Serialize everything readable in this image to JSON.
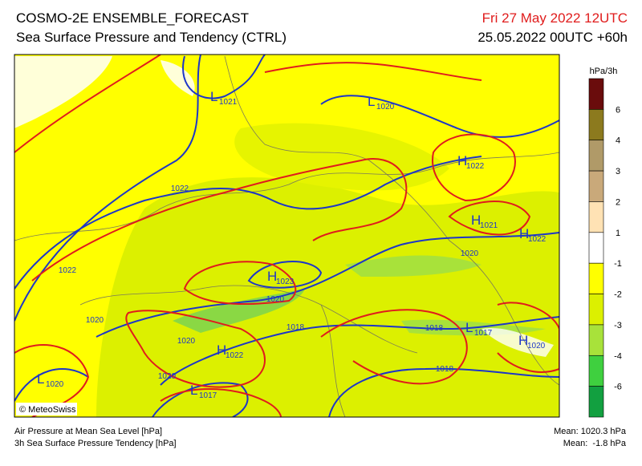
{
  "header": {
    "title": "COSMO-2E ENSEMBLE_FORECAST",
    "subtitle": "Sea Surface Pressure and Tendency (CTRL)",
    "valid_time": "Fri 27 May 2022 12UTC",
    "run_time": "25.05.2022 00UTC +60h"
  },
  "map": {
    "credit": "© MeteoSwiss",
    "labels": [
      {
        "letter": "L",
        "value": "1021"
      },
      {
        "letter": "L",
        "value": "1020"
      },
      {
        "letter": "H",
        "value": "1022"
      },
      {
        "letter": "H",
        "value": "1021"
      },
      {
        "letter": "H",
        "value": "1022"
      },
      {
        "value": "1022"
      },
      {
        "value": "1022"
      },
      {
        "value": "1020"
      },
      {
        "letter": "H",
        "value": "1023"
      },
      {
        "value": "1020"
      },
      {
        "value": "1020"
      },
      {
        "value": "1018"
      },
      {
        "value": "1018"
      },
      {
        "letter": "L",
        "value": "1017"
      },
      {
        "letter": "H",
        "value": "1020"
      },
      {
        "value": "1020"
      },
      {
        "letter": "H",
        "value": "1022"
      },
      {
        "value": "1020"
      },
      {
        "value": "1018"
      },
      {
        "letter": "L",
        "value": "1020"
      },
      {
        "letter": "L",
        "value": "1017"
      }
    ]
  },
  "legend": {
    "unit": "hPa/3h",
    "ticks": [
      6,
      4,
      3,
      2,
      1,
      -1,
      -2,
      -3,
      -4,
      -6
    ],
    "colors": [
      "#6a0c0c",
      "#8c7a1e",
      "#b09a68",
      "#c9a97a",
      "#ffe2b4",
      "#ffffff",
      "#ffff00",
      "#dcf000",
      "#a8e23a",
      "#3fd03f",
      "#12a040"
    ]
  },
  "footer": {
    "left_1": "Air Pressure at Mean Sea Level [hPa]",
    "left_2": "3h Sea Surface Pressure Tendency [hPa]",
    "right_1": "Mean: 1020.3 hPa",
    "right_2": "Mean:  -1.8 hPa"
  }
}
